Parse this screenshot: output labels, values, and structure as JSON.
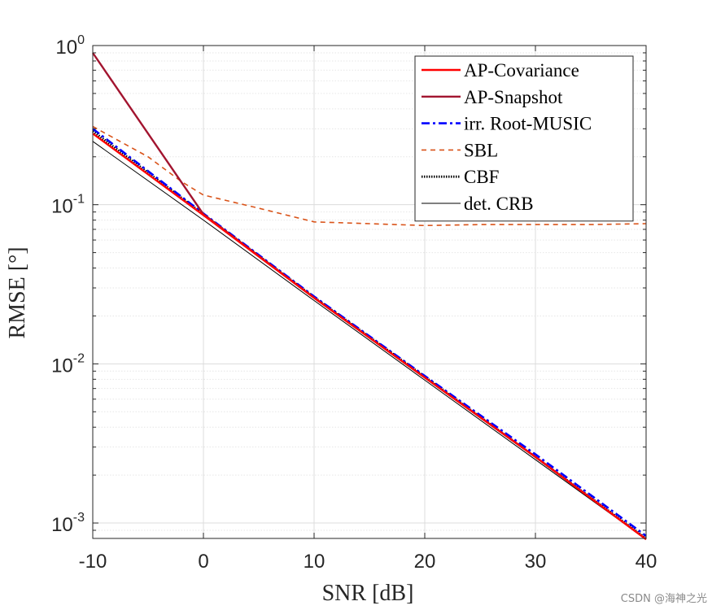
{
  "chart_data": {
    "type": "line",
    "xlabel": "SNR [dB]",
    "ylabel": "RMSE [°]",
    "yscale": "log",
    "xlim": [
      -10,
      40
    ],
    "ylim": [
      0.0008,
      1
    ],
    "grid": true,
    "legend_position": "top-right",
    "x_ticks": [
      {
        "value": -10,
        "label": "-10"
      },
      {
        "value": 0,
        "label": "0"
      },
      {
        "value": 10,
        "label": "10"
      },
      {
        "value": 20,
        "label": "20"
      },
      {
        "value": 30,
        "label": "30"
      },
      {
        "value": 40,
        "label": "40"
      }
    ],
    "y_ticks": [
      {
        "value": 1,
        "base": "10",
        "exp": "0"
      },
      {
        "value": 0.1,
        "base": "10",
        "exp": "-1"
      },
      {
        "value": 0.01,
        "base": "10",
        "exp": "-2"
      },
      {
        "value": 0.001,
        "base": "10",
        "exp": "-3"
      }
    ],
    "series": [
      {
        "name": "AP-Covariance",
        "color": "#ff0000",
        "style": "solid",
        "x": [
          -10,
          0,
          10,
          20,
          30,
          40
        ],
        "y": [
          0.28,
          0.086,
          0.026,
          0.0082,
          0.0026,
          0.00079
        ]
      },
      {
        "name": "AP-Snapshot",
        "color": "#a2142f",
        "style": "solid",
        "x": [
          -10,
          0,
          10,
          20,
          30,
          40
        ],
        "y": [
          0.9,
          0.087,
          0.026,
          0.0082,
          0.0026,
          0.00079
        ]
      },
      {
        "name": "irr. Root-MUSIC",
        "color": "#0000ff",
        "style": "dashdot",
        "x": [
          -10,
          0,
          10,
          20,
          30,
          40
        ],
        "y": [
          0.3,
          0.088,
          0.0265,
          0.0084,
          0.0027,
          0.00083
        ]
      },
      {
        "name": "SBL",
        "color": "#d95319",
        "style": "dashed",
        "x": [
          -10,
          -5,
          -2,
          0,
          5,
          10,
          15,
          20,
          25,
          30,
          35,
          40
        ],
        "y": [
          0.31,
          0.2,
          0.14,
          0.115,
          0.095,
          0.078,
          0.076,
          0.074,
          0.075,
          0.075,
          0.075,
          0.076
        ]
      },
      {
        "name": "CBF",
        "color": "#000000",
        "style": "dotted",
        "x": [
          -10,
          0,
          10,
          20,
          30,
          40
        ],
        "y": [
          0.29,
          0.087,
          0.0262,
          0.0083,
          0.0026,
          0.0008
        ]
      },
      {
        "name": "det. CRB",
        "color": "#000000",
        "style": "thin",
        "x": [
          -10,
          0,
          10,
          20,
          30,
          40
        ],
        "y": [
          0.25,
          0.08,
          0.025,
          0.0079,
          0.0025,
          0.00079
        ]
      }
    ]
  },
  "watermark": "CSDN @海神之光"
}
